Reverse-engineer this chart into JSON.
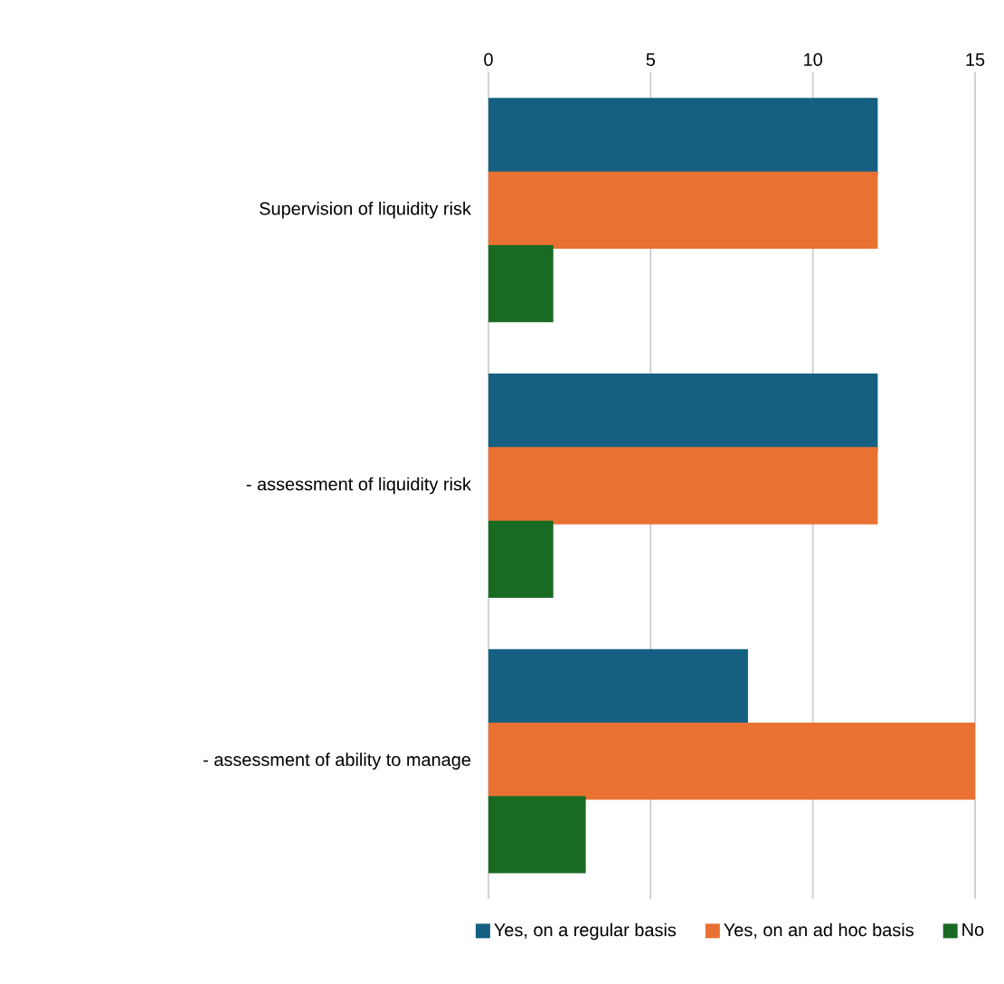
{
  "chart_data": {
    "type": "bar",
    "orientation": "horizontal",
    "categories": [
      "Supervision of liquidity risk",
      "- assessment of liquidity risk",
      "- assessment of ability to manage"
    ],
    "series": [
      {
        "name": "Yes, on a regular basis",
        "color": "#156082",
        "values": [
          12,
          12,
          8
        ]
      },
      {
        "name": "Yes, on an ad hoc basis",
        "color": "#e97132",
        "values": [
          12,
          12,
          15
        ]
      },
      {
        "name": "No",
        "color": "#196b24",
        "values": [
          2,
          2,
          3
        ]
      }
    ],
    "xlim": [
      0,
      15
    ],
    "xticks": [
      0,
      5,
      10,
      15
    ],
    "grid": "x",
    "legend": "bottom"
  }
}
